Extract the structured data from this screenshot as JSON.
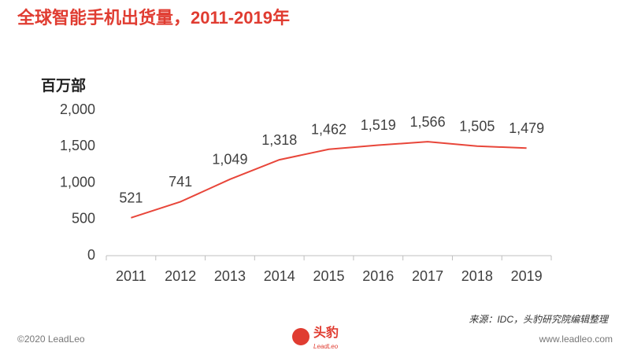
{
  "chart_data": {
    "type": "line",
    "title": "全球智能手机出货量，2011-2019年",
    "y_label": "百万部",
    "categories": [
      "2011",
      "2012",
      "2013",
      "2014",
      "2015",
      "2016",
      "2017",
      "2018",
      "2019"
    ],
    "series": [
      {
        "name": "全球智能手机出货量",
        "color": "#e8463a",
        "values": [
          521,
          741,
          1049,
          1318,
          1462,
          1519,
          1566,
          1505,
          1479
        ],
        "value_labels": [
          "521",
          "741",
          "1,049",
          "1,318",
          "1,462",
          "1,519",
          "1,566",
          "1,505",
          "1,479"
        ]
      }
    ],
    "ylim": [
      0,
      2000
    ],
    "yticks": [
      0,
      500,
      {
        "value": 1000,
        "label": "1,000"
      },
      {
        "value": 1500,
        "label": "1,500"
      },
      {
        "value": 2000,
        "label": "2,000"
      }
    ],
    "grid": false
  },
  "source": "来源：IDC，头豹研究院编辑整理",
  "footer": {
    "copyright": "©2020 LeadLeo",
    "website": "www.leadleo.com",
    "logo_cn": "头豹",
    "logo_en": "LeadLeo"
  }
}
